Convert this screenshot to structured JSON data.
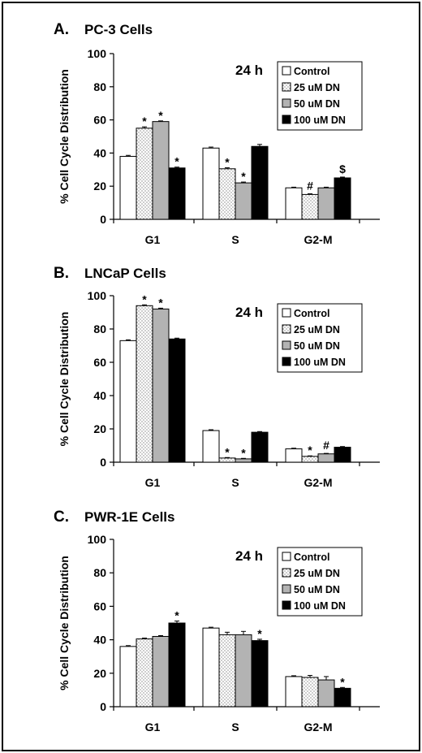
{
  "colors": {
    "Control": "#ffffff",
    "25 uM DN": "dots",
    "50 uM DN": "#b3b3b3",
    "100 uM DN": "#000000"
  },
  "chart_data": [
    {
      "type": "bar",
      "panel_letter": "A.",
      "title": "PC-3 Cells",
      "time_label": "24 h",
      "ylabel": "% Cell Cycle Distribution",
      "xlabel": "",
      "ylim": [
        0,
        100
      ],
      "yticks": [
        "0",
        "20",
        "40",
        "60",
        "80",
        "100"
      ],
      "categories": [
        "G1",
        "S",
        "G2-M"
      ],
      "legend_position": "top-right",
      "series": [
        {
          "name": "Control",
          "values": [
            38,
            43,
            19
          ],
          "errors": [
            0.6,
            0.6,
            0.4
          ]
        },
        {
          "name": "25 uM DN",
          "values": [
            55,
            30.5,
            15
          ],
          "errors": [
            0.8,
            0.6,
            0.4
          ]
        },
        {
          "name": "50 uM DN",
          "values": [
            59,
            22,
            19
          ],
          "errors": [
            0.4,
            0.5,
            0.4
          ]
        },
        {
          "name": "100 uM DN",
          "values": [
            31,
            44,
            25
          ],
          "errors": [
            0.5,
            1.2,
            0.5
          ]
        }
      ],
      "annotations": [
        {
          "category": "G1",
          "series": "25 uM DN",
          "text": "*"
        },
        {
          "category": "G1",
          "series": "50 uM DN",
          "text": "*"
        },
        {
          "category": "G1",
          "series": "100 uM DN",
          "text": "*"
        },
        {
          "category": "S",
          "series": "25 uM DN",
          "text": "*"
        },
        {
          "category": "S",
          "series": "50 uM DN",
          "text": "*"
        },
        {
          "category": "G2-M",
          "series": "25 uM DN",
          "text": "#"
        },
        {
          "category": "G2-M",
          "series": "100 uM DN",
          "text": "$"
        }
      ]
    },
    {
      "type": "bar",
      "panel_letter": "B.",
      "title": "LNCaP Cells",
      "time_label": "24 h",
      "ylabel": "% Cell Cycle Distribution",
      "xlabel": "",
      "ylim": [
        0,
        100
      ],
      "yticks": [
        "0",
        "20",
        "40",
        "60",
        "80",
        "100"
      ],
      "categories": [
        "G1",
        "S",
        "G2-M"
      ],
      "legend_position": "top-right",
      "series": [
        {
          "name": "Control",
          "values": [
            73,
            19,
            8
          ],
          "errors": [
            0.5,
            0.5,
            0.4
          ]
        },
        {
          "name": "25 uM DN",
          "values": [
            94,
            2.5,
            3.5
          ],
          "errors": [
            0.5,
            0.3,
            0.3
          ]
        },
        {
          "name": "50 uM DN",
          "values": [
            92,
            2,
            5
          ],
          "errors": [
            0.5,
            0.3,
            0.3
          ]
        },
        {
          "name": "100 uM DN",
          "values": [
            74,
            18,
            9
          ],
          "errors": [
            0.5,
            0.4,
            0.4
          ]
        }
      ],
      "annotations": [
        {
          "category": "G1",
          "series": "25 uM DN",
          "text": "*"
        },
        {
          "category": "G1",
          "series": "50 uM DN",
          "text": "*"
        },
        {
          "category": "S",
          "series": "25 uM DN",
          "text": "*"
        },
        {
          "category": "S",
          "series": "50 uM DN",
          "text": "*"
        },
        {
          "category": "G2-M",
          "series": "25 uM DN",
          "text": "*"
        },
        {
          "category": "G2-M",
          "series": "50 uM DN",
          "text": "#"
        }
      ]
    },
    {
      "type": "bar",
      "panel_letter": "C.",
      "title": "PWR-1E Cells",
      "time_label": "24 h",
      "ylabel": "% Cell Cycle Distribution",
      "xlabel": "",
      "ylim": [
        0,
        100
      ],
      "yticks": [
        "0",
        "20",
        "40",
        "60",
        "80",
        "100"
      ],
      "categories": [
        "G1",
        "S",
        "G2-M"
      ],
      "legend_position": "top-right",
      "series": [
        {
          "name": "Control",
          "values": [
            36,
            47,
            18
          ],
          "errors": [
            0.5,
            0.5,
            0.5
          ]
        },
        {
          "name": "25 uM DN",
          "values": [
            40.5,
            43,
            17.5
          ],
          "errors": [
            0.5,
            1.5,
            1.2
          ]
        },
        {
          "name": "50 uM DN",
          "values": [
            42,
            43,
            16
          ],
          "errors": [
            0.5,
            2.0,
            2.0
          ]
        },
        {
          "name": "100 uM DN",
          "values": [
            50,
            39.5,
            11
          ],
          "errors": [
            1.2,
            0.8,
            0.5
          ]
        }
      ],
      "annotations": [
        {
          "category": "G1",
          "series": "100 uM DN",
          "text": "*"
        },
        {
          "category": "S",
          "series": "100 uM DN",
          "text": "*"
        },
        {
          "category": "G2-M",
          "series": "100 uM DN",
          "text": "*"
        }
      ]
    }
  ]
}
